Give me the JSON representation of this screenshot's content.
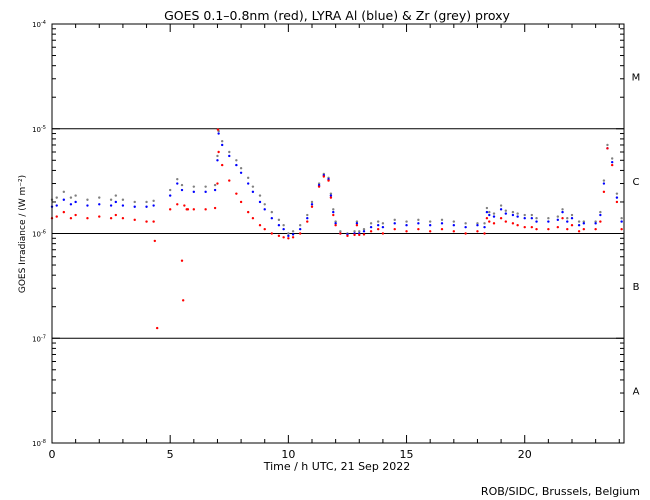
{
  "title": "GOES 0.1–0.8nm (red), LYRA Al (blue) & Zr (grey) proxy",
  "credit": "ROB/SIDC, Brussels, Belgium",
  "chart_data": {
    "type": "scatter",
    "title": "GOES 0.1–0.8nm (red), LYRA Al (blue) & Zr (grey) proxy",
    "xlabel": "Time / h UTC, 21 Sep 2022",
    "ylabel": "GOES Irradiance / (W m⁻²)",
    "xlim": [
      0,
      24.2
    ],
    "ylim": [
      1e-08,
      0.0001
    ],
    "yscale": "log",
    "x_ticks": [
      {
        "v": 0,
        "label": "0"
      },
      {
        "v": 5,
        "label": "5"
      },
      {
        "v": 10,
        "label": "10"
      },
      {
        "v": 15,
        "label": "15"
      },
      {
        "v": 20,
        "label": "20"
      }
    ],
    "y_ticks": [
      {
        "exp": -8,
        "base": "10",
        "sup": "-8"
      },
      {
        "exp": -7,
        "base": "10",
        "sup": "-7"
      },
      {
        "exp": -6,
        "base": "10",
        "sup": "-6"
      },
      {
        "exp": -5,
        "base": "10",
        "sup": "-5"
      },
      {
        "exp": -4,
        "base": "10",
        "sup": "-4"
      }
    ],
    "reference_lines": [
      1e-07,
      1e-06,
      1e-05
    ],
    "flare_classes": [
      {
        "label": "A",
        "exp": -7.5
      },
      {
        "label": "B",
        "exp": -6.5
      },
      {
        "label": "C",
        "exp": -5.5
      },
      {
        "label": "M",
        "exp": -4.5
      }
    ],
    "series": [
      {
        "color": "#ff0000",
        "x": [
          0.0,
          0.2,
          0.5,
          0.8,
          1.0,
          1.5,
          2.0,
          2.5,
          2.7,
          3.0,
          3.5,
          4.0,
          4.3,
          4.35,
          4.45,
          5.0,
          5.3,
          5.5,
          5.55,
          5.6,
          5.7,
          5.75,
          6.0,
          6.5,
          6.9,
          7.0,
          7.02,
          7.05,
          7.2,
          7.5,
          7.8,
          8.0,
          8.3,
          8.5,
          8.8,
          9.0,
          9.3,
          9.6,
          9.8,
          10.0,
          10.2,
          10.5,
          10.8,
          11.0,
          11.3,
          11.5,
          11.7,
          11.8,
          11.9,
          12.0,
          12.2,
          12.5,
          12.8,
          12.9,
          13.0,
          13.2,
          13.5,
          13.8,
          14.0,
          14.5,
          15.0,
          15.5,
          16.0,
          16.5,
          17.0,
          17.5,
          18.0,
          18.3,
          18.4,
          18.5,
          18.7,
          19.0,
          19.2,
          19.5,
          19.7,
          20.0,
          20.3,
          20.5,
          21.0,
          21.4,
          21.6,
          21.8,
          22.0,
          22.3,
          22.5,
          23.0,
          23.2,
          23.35,
          23.5,
          23.7,
          23.9,
          24.1
        ],
        "y": [
          1.4e-06,
          1.45e-06,
          1.6e-06,
          1.4e-06,
          1.5e-06,
          1.4e-06,
          1.45e-06,
          1.4e-06,
          1.5e-06,
          1.4e-06,
          1.35e-06,
          1.3e-06,
          1.3e-06,
          8.5e-07,
          1.25e-07,
          1.7e-06,
          1.9e-06,
          5.5e-07,
          2.3e-07,
          1.85e-06,
          1.7e-06,
          1.7e-06,
          1.7e-06,
          1.7e-06,
          1.75e-06,
          3e-06,
          9.8e-06,
          6e-06,
          4.5e-06,
          3.2e-06,
          2.4e-06,
          2e-06,
          1.6e-06,
          1.4e-06,
          1.2e-06,
          1.1e-06,
          1e-06,
          9.5e-07,
          9.2e-07,
          9e-07,
          9.2e-07,
          1e-06,
          1.3e-06,
          1.8e-06,
          2.8e-06,
          3.5e-06,
          3.2e-06,
          2.2e-06,
          1.5e-06,
          1.2e-06,
          1e-06,
          9.5e-07,
          9.7e-07,
          1.2e-06,
          9.7e-07,
          9.8e-07,
          1.05e-06,
          1.1e-06,
          1e-06,
          1.1e-06,
          1.05e-06,
          1.1e-06,
          1.05e-06,
          1.1e-06,
          1.05e-06,
          1e-06,
          1.05e-06,
          1e-06,
          1.4e-06,
          1.3e-06,
          1.25e-06,
          1.4e-06,
          1.3e-06,
          1.25e-06,
          1.2e-06,
          1.15e-06,
          1.15e-06,
          1.1e-06,
          1.1e-06,
          1.15e-06,
          1.4e-06,
          1.1e-06,
          1.2e-06,
          1.05e-06,
          1.1e-06,
          1.1e-06,
          1.3e-06,
          2.5e-06,
          6.5e-06,
          4.5e-06,
          2e-06,
          1.1e-06
        ]
      },
      {
        "color": "#0000ff",
        "x": [
          0.0,
          0.2,
          0.5,
          0.8,
          1.0,
          1.5,
          2.0,
          2.5,
          2.7,
          3.0,
          3.5,
          4.0,
          4.3,
          5.0,
          5.3,
          5.5,
          6.0,
          6.5,
          6.9,
          7.0,
          7.05,
          7.2,
          7.5,
          7.8,
          8.0,
          8.3,
          8.5,
          8.8,
          9.0,
          9.3,
          9.6,
          9.8,
          10.0,
          10.2,
          10.5,
          10.8,
          11.0,
          11.3,
          11.5,
          11.7,
          11.8,
          11.9,
          12.0,
          12.2,
          12.5,
          12.8,
          12.9,
          13.0,
          13.2,
          13.5,
          13.8,
          14.0,
          14.5,
          15.0,
          15.5,
          16.0,
          16.5,
          17.0,
          17.5,
          18.0,
          18.3,
          18.4,
          18.5,
          18.7,
          19.0,
          19.2,
          19.5,
          19.7,
          20.0,
          20.3,
          20.5,
          21.0,
          21.4,
          21.6,
          21.8,
          22.0,
          22.3,
          22.5,
          23.0,
          23.2,
          23.35,
          23.5,
          23.7,
          23.9,
          24.1
        ],
        "y": [
          1.8e-06,
          1.85e-06,
          2.1e-06,
          1.9e-06,
          2e-06,
          1.85e-06,
          1.9e-06,
          1.85e-06,
          2e-06,
          1.85e-06,
          1.8e-06,
          1.8e-06,
          1.85e-06,
          2.3e-06,
          3e-06,
          2.6e-06,
          2.5e-06,
          2.5e-06,
          2.6e-06,
          5e-06,
          9e-06,
          7e-06,
          5.5e-06,
          4.5e-06,
          3.8e-06,
          3e-06,
          2.5e-06,
          2e-06,
          1.7e-06,
          1.4e-06,
          1.2e-06,
          1.1e-06,
          9.5e-07,
          9.8e-07,
          1.1e-06,
          1.4e-06,
          1.9e-06,
          2.9e-06,
          3.6e-06,
          3.3e-06,
          2.3e-06,
          1.6e-06,
          1.25e-06,
          1e-06,
          9.8e-07,
          1e-06,
          1.25e-06,
          1e-06,
          1.05e-06,
          1.15e-06,
          1.2e-06,
          1.15e-06,
          1.25e-06,
          1.2e-06,
          1.25e-06,
          1.2e-06,
          1.25e-06,
          1.2e-06,
          1.15e-06,
          1.2e-06,
          1.15e-06,
          1.6e-06,
          1.5e-06,
          1.45e-06,
          1.7e-06,
          1.55e-06,
          1.5e-06,
          1.45e-06,
          1.4e-06,
          1.4e-06,
          1.3e-06,
          1.3e-06,
          1.35e-06,
          1.6e-06,
          1.3e-06,
          1.4e-06,
          1.2e-06,
          1.25e-06,
          1.25e-06,
          1.5e-06,
          3e-06,
          6.5e-06,
          4.8e-06,
          2.2e-06,
          1.3e-06
        ]
      },
      {
        "color": "#808080",
        "x": [
          0.0,
          0.2,
          0.5,
          0.8,
          1.0,
          1.5,
          2.0,
          2.5,
          2.7,
          3.0,
          3.5,
          4.0,
          4.3,
          5.0,
          5.3,
          5.5,
          6.0,
          6.5,
          6.9,
          7.0,
          7.05,
          7.2,
          7.5,
          7.8,
          8.0,
          8.3,
          8.5,
          8.8,
          9.0,
          9.3,
          9.6,
          9.8,
          10.0,
          10.2,
          10.5,
          10.8,
          11.0,
          11.3,
          11.5,
          11.7,
          11.8,
          11.9,
          12.0,
          12.2,
          12.5,
          12.8,
          12.9,
          13.0,
          13.2,
          13.5,
          13.8,
          14.0,
          14.5,
          15.0,
          15.5,
          16.0,
          16.5,
          17.0,
          17.5,
          18.0,
          18.3,
          18.4,
          18.5,
          18.7,
          19.0,
          19.2,
          19.5,
          19.7,
          20.0,
          20.3,
          20.5,
          21.0,
          21.4,
          21.6,
          21.8,
          22.0,
          22.3,
          22.5,
          23.0,
          23.2,
          23.35,
          23.5,
          23.7,
          23.9,
          24.1
        ],
        "y": [
          2.1e-06,
          2.2e-06,
          2.5e-06,
          2.2e-06,
          2.3e-06,
          2.1e-06,
          2.2e-06,
          2.1e-06,
          2.3e-06,
          2.1e-06,
          2e-06,
          2e-06,
          2.05e-06,
          2.6e-06,
          3.3e-06,
          2.9e-06,
          2.8e-06,
          2.8e-06,
          2.9e-06,
          5.5e-06,
          9.5e-06,
          7.6e-06,
          6e-06,
          5e-06,
          4.2e-06,
          3.4e-06,
          2.8e-06,
          2.3e-06,
          1.9e-06,
          1.6e-06,
          1.35e-06,
          1.2e-06,
          1e-06,
          1.05e-06,
          1.2e-06,
          1.5e-06,
          2e-06,
          3e-06,
          3.7e-06,
          3.4e-06,
          2.4e-06,
          1.7e-06,
          1.3e-06,
          1.05e-06,
          1e-06,
          1.05e-06,
          1.3e-06,
          1.05e-06,
          1.1e-06,
          1.25e-06,
          1.3e-06,
          1.25e-06,
          1.35e-06,
          1.3e-06,
          1.35e-06,
          1.3e-06,
          1.35e-06,
          1.3e-06,
          1.25e-06,
          1.25e-06,
          1.25e-06,
          1.75e-06,
          1.6e-06,
          1.55e-06,
          1.85e-06,
          1.65e-06,
          1.6e-06,
          1.55e-06,
          1.5e-06,
          1.5e-06,
          1.4e-06,
          1.4e-06,
          1.45e-06,
          1.7e-06,
          1.4e-06,
          1.5e-06,
          1.3e-06,
          1.3e-06,
          1.3e-06,
          1.6e-06,
          3.2e-06,
          7e-06,
          5.2e-06,
          2.4e-06,
          1.4e-06
        ]
      }
    ]
  }
}
